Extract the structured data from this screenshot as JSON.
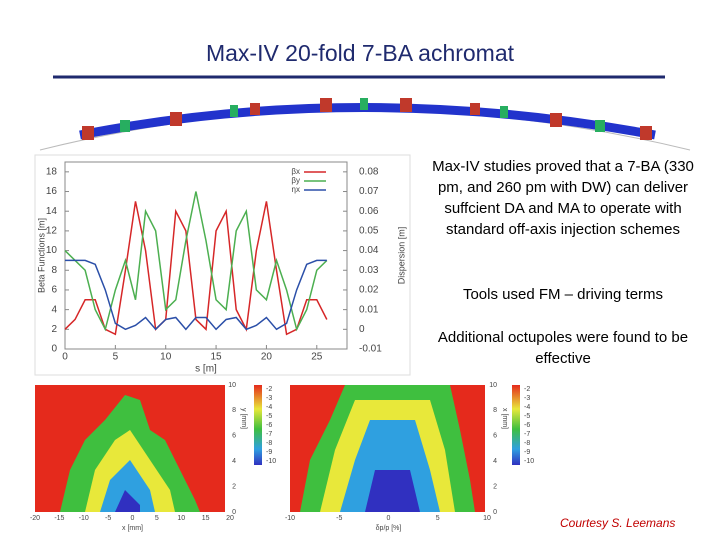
{
  "title": "Max-IV 20-fold 7-BA achromat",
  "paragraphs": [
    "Max-IV studies proved that a 7-BA (330 pm, and 260 pm with DW) can deliver suffcient DA and MA to operate with standard off-axis injection schemes",
    "Tools used FM – driving terms",
    "Additional octupoles were found to be effective"
  ],
  "credit": "Courtesy S. Leemans",
  "chart_data": {
    "type": "line",
    "xlabel": "s [m]",
    "ylabel": "Beta Functions [m]",
    "y2label": "Dispersion [m]",
    "x": [
      0,
      1,
      2,
      3,
      4,
      5,
      6,
      7,
      8,
      9,
      10,
      11,
      12,
      13,
      14,
      15,
      16,
      17,
      18,
      19,
      20,
      21,
      22,
      23,
      24,
      25,
      26
    ],
    "xlim": [
      0,
      28
    ],
    "xticks": [
      0,
      5,
      10,
      15,
      20,
      25
    ],
    "ylim": [
      0,
      19
    ],
    "yticks": [
      0,
      2,
      4,
      6,
      8,
      10,
      12,
      14,
      16,
      18
    ],
    "y2lim": [
      -0.01,
      0.085
    ],
    "y2ticks": [
      -0.01,
      0,
      0.01,
      0.02,
      0.03,
      0.04,
      0.05,
      0.06,
      0.07,
      0.08
    ],
    "series": [
      {
        "name": "βx",
        "color": "#d62728",
        "values": [
          2,
          3,
          5,
          5,
          2,
          1.5,
          8,
          15,
          10,
          2,
          3,
          14,
          12,
          3,
          2,
          12,
          14,
          4,
          2,
          10,
          15,
          8,
          1.5,
          2,
          5,
          5,
          3
        ]
      },
      {
        "name": "βy",
        "color": "#4caf50",
        "values": [
          10,
          9,
          8,
          4,
          2,
          6,
          9,
          5,
          14,
          12,
          4,
          5,
          11,
          16,
          11,
          5,
          4,
          12,
          14,
          6,
          5,
          9,
          6,
          2,
          4,
          8,
          9
        ]
      },
      {
        "name": "ηx",
        "color": "#2b4fa8",
        "axis": "y2",
        "values": [
          0.035,
          0.035,
          0.035,
          0.033,
          0.02,
          0.003,
          0,
          0.002,
          0.006,
          0,
          0.005,
          0.006,
          0,
          0.006,
          0.006,
          0,
          0.005,
          0.006,
          0,
          0.002,
          0.006,
          0,
          0.003,
          0.02,
          0.033,
          0.035,
          0.035
        ]
      }
    ]
  },
  "fm_left": {
    "xlabel": "x [mm]",
    "ylabel": "y [mm]",
    "xticks": [
      -20,
      -15,
      -10,
      -5,
      0,
      5,
      10,
      15,
      20
    ],
    "yticks": [
      0,
      2,
      4,
      6,
      8,
      10
    ],
    "colorbar": [
      -2,
      -3,
      -4,
      -5,
      -6,
      -7,
      -8,
      -9,
      -10
    ]
  },
  "fm_right": {
    "xlabel": "δp/p [%]",
    "ylabel": "x [mm]",
    "xticks": [
      -10,
      -5,
      0,
      5,
      10
    ],
    "yticks": [
      0,
      2,
      4,
      6,
      8,
      10
    ],
    "colorbar": [
      -2,
      -3,
      -4,
      -5,
      -6,
      -7,
      -8,
      -9,
      -10
    ]
  }
}
